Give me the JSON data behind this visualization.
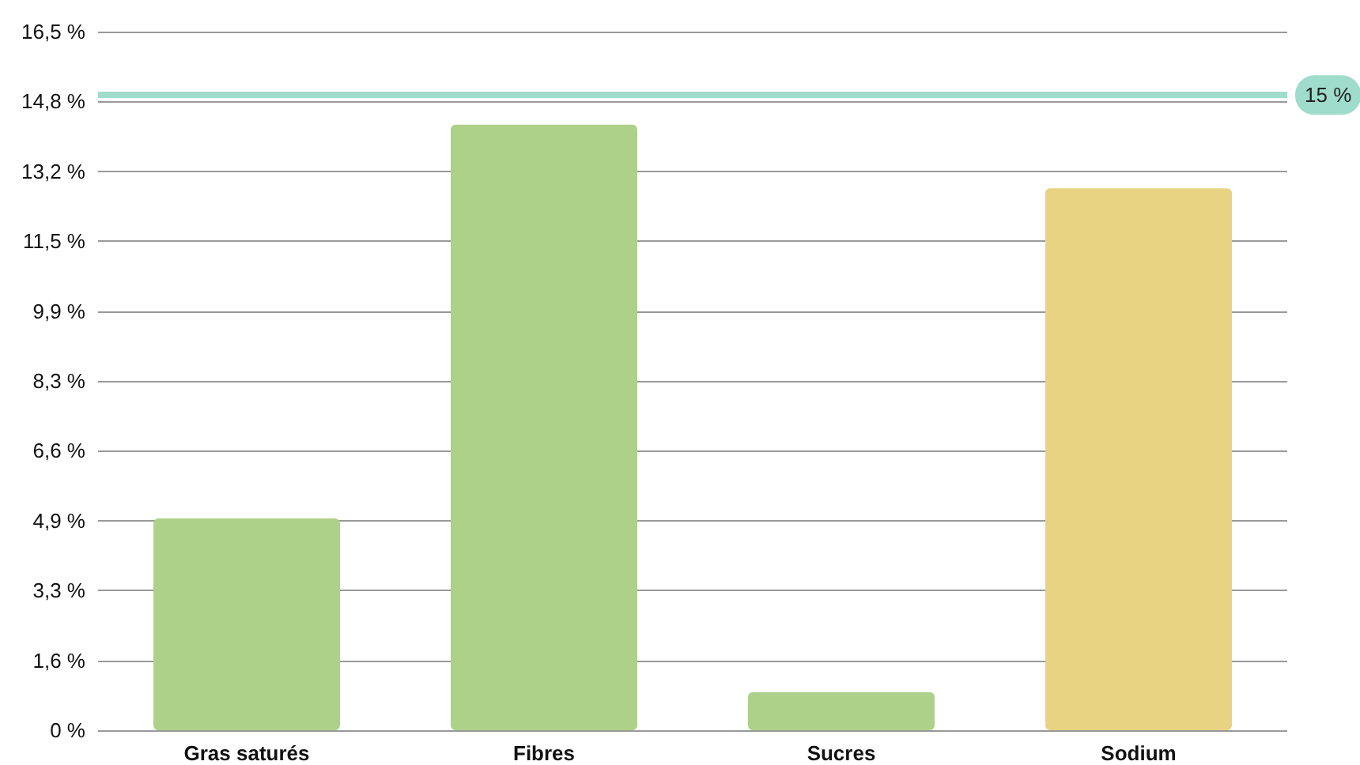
{
  "chart_data": {
    "type": "bar",
    "categories": [
      "Gras saturés",
      "Fibres",
      "Sucres",
      "Sodium"
    ],
    "values": [
      5.0,
      14.3,
      0.9,
      12.8
    ],
    "colors": [
      "#aed18a",
      "#aed18a",
      "#aed18a",
      "#e8d383"
    ],
    "ylim": [
      0,
      16.5
    ],
    "yticks": [
      {
        "value": 0,
        "label": "0 %"
      },
      {
        "value": 1.65,
        "label": "1,6 %"
      },
      {
        "value": 3.3,
        "label": "3,3 %"
      },
      {
        "value": 4.95,
        "label": "4,9 %"
      },
      {
        "value": 6.6,
        "label": "6,6 %"
      },
      {
        "value": 8.25,
        "label": "8,3 %"
      },
      {
        "value": 9.9,
        "label": "9,9 %"
      },
      {
        "value": 11.55,
        "label": "11,5 %"
      },
      {
        "value": 13.2,
        "label": "13,2 %"
      },
      {
        "value": 14.85,
        "label": "14,8 %"
      },
      {
        "value": 16.5,
        "label": "16,5 %"
      }
    ],
    "ref_lines": [
      {
        "axis": "y",
        "value": 15,
        "label": "15 %",
        "color": "#9fdccb"
      }
    ],
    "grid": "y"
  }
}
